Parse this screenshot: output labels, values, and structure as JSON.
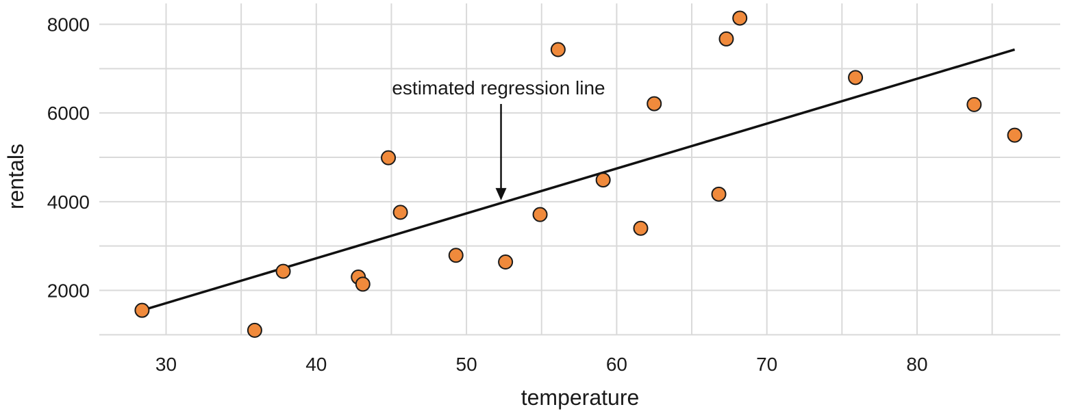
{
  "chart_data": {
    "type": "scatter",
    "xlabel": "temperature",
    "ylabel": "rentals",
    "xlim": [
      25.5,
      89.5
    ],
    "ylim": [
      0,
      8500
    ],
    "x_ticks": [
      30,
      40,
      50,
      60,
      70,
      80
    ],
    "y_ticks": [
      2000,
      4000,
      6000,
      8000
    ],
    "grid": true,
    "points": [
      {
        "x": 28.4,
        "y": 1550
      },
      {
        "x": 35.9,
        "y": 1100
      },
      {
        "x": 37.8,
        "y": 2430
      },
      {
        "x": 42.8,
        "y": 2300
      },
      {
        "x": 43.1,
        "y": 2140
      },
      {
        "x": 44.8,
        "y": 4990
      },
      {
        "x": 45.6,
        "y": 3760
      },
      {
        "x": 49.3,
        "y": 2790
      },
      {
        "x": 52.6,
        "y": 2640
      },
      {
        "x": 54.9,
        "y": 3710
      },
      {
        "x": 56.1,
        "y": 7430
      },
      {
        "x": 59.1,
        "y": 4490
      },
      {
        "x": 61.6,
        "y": 3400
      },
      {
        "x": 62.5,
        "y": 6210
      },
      {
        "x": 66.8,
        "y": 4170
      },
      {
        "x": 67.3,
        "y": 7670
      },
      {
        "x": 68.2,
        "y": 8140
      },
      {
        "x": 75.9,
        "y": 6800
      },
      {
        "x": 83.8,
        "y": 6190
      },
      {
        "x": 86.5,
        "y": 5500
      }
    ],
    "regression_line": {
      "x": [
        28.4,
        86.5
      ],
      "y": [
        1550,
        7430
      ]
    },
    "point_color": "#f08a3c",
    "line_color": "#111111",
    "annotation": {
      "text": "estimated regression line",
      "x": 52.3,
      "y": 4030
    }
  }
}
